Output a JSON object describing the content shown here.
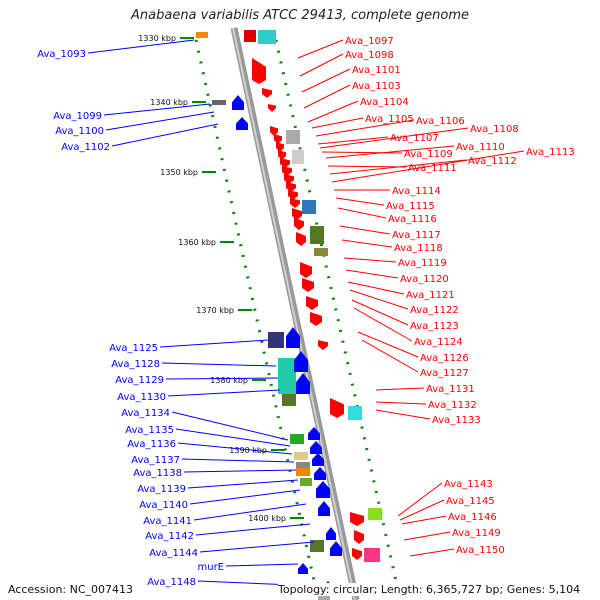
{
  "title": "Anabaena variabilis ATCC 29413, complete genome",
  "footer": {
    "accession": "Accession: NC_007413",
    "summary": "Topology: circular; Length: 6,365,727 bp; Genes: 5,104"
  },
  "colors": {
    "forward": "#ff0000",
    "reverse": "#0000ff",
    "tick": "#008800",
    "axis": "#999999"
  },
  "scale_ticks": [
    "1330 kbp",
    "1340 kbp",
    "1350 kbp",
    "1360 kbp",
    "1370 kbp",
    "1380 kbp",
    "1390 kbp",
    "1400 kbp"
  ],
  "forward_genes": [
    "Ava_1097",
    "Ava_1098",
    "Ava_1101",
    "Ava_1103",
    "Ava_1104",
    "Ava_1105",
    "Ava_1106",
    "Ava_1107",
    "Ava_1108",
    "Ava_1109",
    "Ava_1110",
    "Ava_1111",
    "Ava_1112",
    "Ava_1113",
    "Ava_1114",
    "Ava_1115",
    "Ava_1116",
    "Ava_1117",
    "Ava_1118",
    "Ava_1119",
    "Ava_1120",
    "Ava_1121",
    "Ava_1122",
    "Ava_1123",
    "Ava_1124",
    "Ava_1126",
    "Ava_1127",
    "Ava_1131",
    "Ava_1132",
    "Ava_1133",
    "Ava_1143",
    "Ava_1145",
    "Ava_1146",
    "Ava_1149",
    "Ava_1150"
  ],
  "reverse_genes": [
    "Ava_1093",
    "Ava_1099",
    "Ava_1100",
    "Ava_1102",
    "Ava_1125",
    "Ava_1128",
    "Ava_1129",
    "Ava_1130",
    "Ava_1134",
    "Ava_1135",
    "Ava_1136",
    "Ava_1137",
    "Ava_1138",
    "Ava_1139",
    "Ava_1140",
    "Ava_1141",
    "Ava_1142",
    "Ava_1144",
    "murE",
    "Ava_1148"
  ]
}
